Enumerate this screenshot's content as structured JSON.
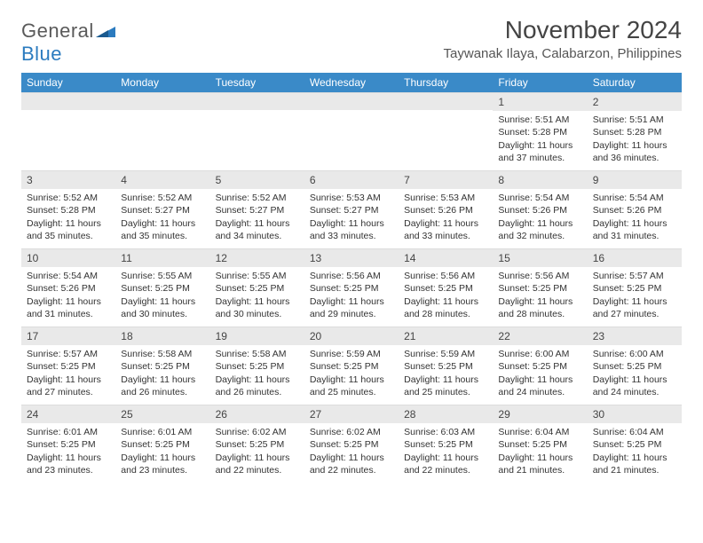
{
  "logo": {
    "general": "General",
    "blue": "Blue",
    "mark_color": "#2b7bbf"
  },
  "title": "November 2024",
  "location": "Taywanak Ilaya, Calabarzon, Philippines",
  "weekdays": [
    "Sunday",
    "Monday",
    "Tuesday",
    "Wednesday",
    "Thursday",
    "Friday",
    "Saturday"
  ],
  "colors": {
    "header_bg": "#3a8ac8",
    "header_text": "#ffffff",
    "daynum_bg": "#e9e9e9",
    "text": "#333333"
  },
  "weeks": [
    [
      {
        "day": "",
        "sunrise": "",
        "sunset": "",
        "daylight": ""
      },
      {
        "day": "",
        "sunrise": "",
        "sunset": "",
        "daylight": ""
      },
      {
        "day": "",
        "sunrise": "",
        "sunset": "",
        "daylight": ""
      },
      {
        "day": "",
        "sunrise": "",
        "sunset": "",
        "daylight": ""
      },
      {
        "day": "",
        "sunrise": "",
        "sunset": "",
        "daylight": ""
      },
      {
        "day": "1",
        "sunrise": "Sunrise: 5:51 AM",
        "sunset": "Sunset: 5:28 PM",
        "daylight": "Daylight: 11 hours and 37 minutes."
      },
      {
        "day": "2",
        "sunrise": "Sunrise: 5:51 AM",
        "sunset": "Sunset: 5:28 PM",
        "daylight": "Daylight: 11 hours and 36 minutes."
      }
    ],
    [
      {
        "day": "3",
        "sunrise": "Sunrise: 5:52 AM",
        "sunset": "Sunset: 5:28 PM",
        "daylight": "Daylight: 11 hours and 35 minutes."
      },
      {
        "day": "4",
        "sunrise": "Sunrise: 5:52 AM",
        "sunset": "Sunset: 5:27 PM",
        "daylight": "Daylight: 11 hours and 35 minutes."
      },
      {
        "day": "5",
        "sunrise": "Sunrise: 5:52 AM",
        "sunset": "Sunset: 5:27 PM",
        "daylight": "Daylight: 11 hours and 34 minutes."
      },
      {
        "day": "6",
        "sunrise": "Sunrise: 5:53 AM",
        "sunset": "Sunset: 5:27 PM",
        "daylight": "Daylight: 11 hours and 33 minutes."
      },
      {
        "day": "7",
        "sunrise": "Sunrise: 5:53 AM",
        "sunset": "Sunset: 5:26 PM",
        "daylight": "Daylight: 11 hours and 33 minutes."
      },
      {
        "day": "8",
        "sunrise": "Sunrise: 5:54 AM",
        "sunset": "Sunset: 5:26 PM",
        "daylight": "Daylight: 11 hours and 32 minutes."
      },
      {
        "day": "9",
        "sunrise": "Sunrise: 5:54 AM",
        "sunset": "Sunset: 5:26 PM",
        "daylight": "Daylight: 11 hours and 31 minutes."
      }
    ],
    [
      {
        "day": "10",
        "sunrise": "Sunrise: 5:54 AM",
        "sunset": "Sunset: 5:26 PM",
        "daylight": "Daylight: 11 hours and 31 minutes."
      },
      {
        "day": "11",
        "sunrise": "Sunrise: 5:55 AM",
        "sunset": "Sunset: 5:25 PM",
        "daylight": "Daylight: 11 hours and 30 minutes."
      },
      {
        "day": "12",
        "sunrise": "Sunrise: 5:55 AM",
        "sunset": "Sunset: 5:25 PM",
        "daylight": "Daylight: 11 hours and 30 minutes."
      },
      {
        "day": "13",
        "sunrise": "Sunrise: 5:56 AM",
        "sunset": "Sunset: 5:25 PM",
        "daylight": "Daylight: 11 hours and 29 minutes."
      },
      {
        "day": "14",
        "sunrise": "Sunrise: 5:56 AM",
        "sunset": "Sunset: 5:25 PM",
        "daylight": "Daylight: 11 hours and 28 minutes."
      },
      {
        "day": "15",
        "sunrise": "Sunrise: 5:56 AM",
        "sunset": "Sunset: 5:25 PM",
        "daylight": "Daylight: 11 hours and 28 minutes."
      },
      {
        "day": "16",
        "sunrise": "Sunrise: 5:57 AM",
        "sunset": "Sunset: 5:25 PM",
        "daylight": "Daylight: 11 hours and 27 minutes."
      }
    ],
    [
      {
        "day": "17",
        "sunrise": "Sunrise: 5:57 AM",
        "sunset": "Sunset: 5:25 PM",
        "daylight": "Daylight: 11 hours and 27 minutes."
      },
      {
        "day": "18",
        "sunrise": "Sunrise: 5:58 AM",
        "sunset": "Sunset: 5:25 PM",
        "daylight": "Daylight: 11 hours and 26 minutes."
      },
      {
        "day": "19",
        "sunrise": "Sunrise: 5:58 AM",
        "sunset": "Sunset: 5:25 PM",
        "daylight": "Daylight: 11 hours and 26 minutes."
      },
      {
        "day": "20",
        "sunrise": "Sunrise: 5:59 AM",
        "sunset": "Sunset: 5:25 PM",
        "daylight": "Daylight: 11 hours and 25 minutes."
      },
      {
        "day": "21",
        "sunrise": "Sunrise: 5:59 AM",
        "sunset": "Sunset: 5:25 PM",
        "daylight": "Daylight: 11 hours and 25 minutes."
      },
      {
        "day": "22",
        "sunrise": "Sunrise: 6:00 AM",
        "sunset": "Sunset: 5:25 PM",
        "daylight": "Daylight: 11 hours and 24 minutes."
      },
      {
        "day": "23",
        "sunrise": "Sunrise: 6:00 AM",
        "sunset": "Sunset: 5:25 PM",
        "daylight": "Daylight: 11 hours and 24 minutes."
      }
    ],
    [
      {
        "day": "24",
        "sunrise": "Sunrise: 6:01 AM",
        "sunset": "Sunset: 5:25 PM",
        "daylight": "Daylight: 11 hours and 23 minutes."
      },
      {
        "day": "25",
        "sunrise": "Sunrise: 6:01 AM",
        "sunset": "Sunset: 5:25 PM",
        "daylight": "Daylight: 11 hours and 23 minutes."
      },
      {
        "day": "26",
        "sunrise": "Sunrise: 6:02 AM",
        "sunset": "Sunset: 5:25 PM",
        "daylight": "Daylight: 11 hours and 22 minutes."
      },
      {
        "day": "27",
        "sunrise": "Sunrise: 6:02 AM",
        "sunset": "Sunset: 5:25 PM",
        "daylight": "Daylight: 11 hours and 22 minutes."
      },
      {
        "day": "28",
        "sunrise": "Sunrise: 6:03 AM",
        "sunset": "Sunset: 5:25 PM",
        "daylight": "Daylight: 11 hours and 22 minutes."
      },
      {
        "day": "29",
        "sunrise": "Sunrise: 6:04 AM",
        "sunset": "Sunset: 5:25 PM",
        "daylight": "Daylight: 11 hours and 21 minutes."
      },
      {
        "day": "30",
        "sunrise": "Sunrise: 6:04 AM",
        "sunset": "Sunset: 5:25 PM",
        "daylight": "Daylight: 11 hours and 21 minutes."
      }
    ]
  ]
}
